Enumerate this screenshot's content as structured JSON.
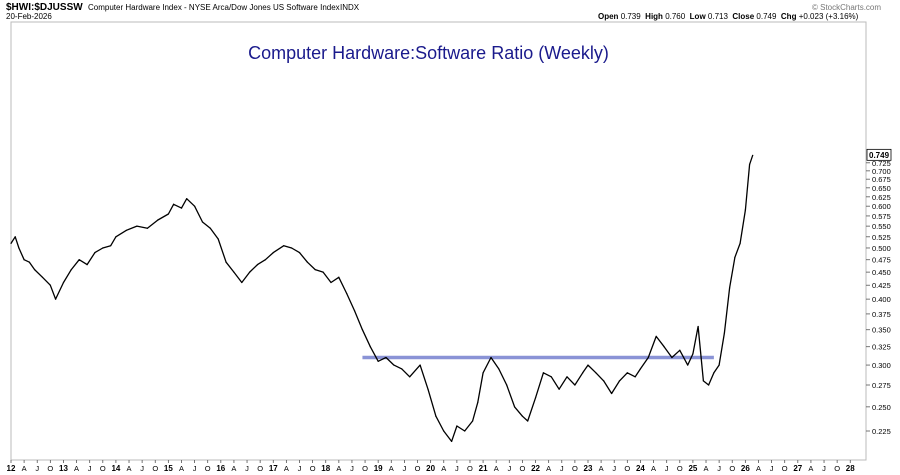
{
  "header": {
    "symbol": "$HWI:$DJUSSW",
    "description": "Computer Hardware Index - NYSE Arca/Dow Jones US Software Index",
    "exchange": "INDX",
    "date": "20-Feb-2026",
    "open_label": "Open",
    "open": "0.739",
    "high_label": "High",
    "high": "0.760",
    "low_label": "Low",
    "low": "0.713",
    "close_label": "Close",
    "close": "0.749",
    "chg_label": "Chg",
    "chg": "+0.023 (+3.16%)",
    "watermark": "© StockCharts.com"
  },
  "colors": {
    "line": "#000000",
    "support": "#8a93d6",
    "title": "#1a1a8c",
    "grid": "#e6e6e6"
  },
  "chart_data": {
    "type": "line",
    "title": "Computer Hardware:Software Ratio (Weekly)",
    "series": [
      {
        "values": [
          [
            2012.0,
            0.51
          ],
          [
            2012.08,
            0.525
          ],
          [
            2012.15,
            0.5
          ],
          [
            2012.25,
            0.475
          ],
          [
            2012.35,
            0.47
          ],
          [
            2012.45,
            0.455
          ],
          [
            2012.6,
            0.44
          ],
          [
            2012.75,
            0.425
          ],
          [
            2012.85,
            0.4
          ],
          [
            2013.0,
            0.43
          ],
          [
            2013.15,
            0.455
          ],
          [
            2013.3,
            0.475
          ],
          [
            2013.45,
            0.465
          ],
          [
            2013.6,
            0.49
          ],
          [
            2013.75,
            0.5
          ],
          [
            2013.9,
            0.505
          ],
          [
            2014.0,
            0.525
          ],
          [
            2014.2,
            0.54
          ],
          [
            2014.4,
            0.55
          ],
          [
            2014.6,
            0.545
          ],
          [
            2014.8,
            0.565
          ],
          [
            2015.0,
            0.58
          ],
          [
            2015.1,
            0.605
          ],
          [
            2015.25,
            0.595
          ],
          [
            2015.35,
            0.62
          ],
          [
            2015.5,
            0.6
          ],
          [
            2015.65,
            0.56
          ],
          [
            2015.8,
            0.545
          ],
          [
            2015.95,
            0.52
          ],
          [
            2016.1,
            0.47
          ],
          [
            2016.25,
            0.45
          ],
          [
            2016.4,
            0.43
          ],
          [
            2016.55,
            0.45
          ],
          [
            2016.7,
            0.465
          ],
          [
            2016.85,
            0.475
          ],
          [
            2017.0,
            0.49
          ],
          [
            2017.2,
            0.505
          ],
          [
            2017.35,
            0.5
          ],
          [
            2017.5,
            0.49
          ],
          [
            2017.65,
            0.47
          ],
          [
            2017.8,
            0.455
          ],
          [
            2017.95,
            0.45
          ],
          [
            2018.1,
            0.43
          ],
          [
            2018.25,
            0.44
          ],
          [
            2018.4,
            0.41
          ],
          [
            2018.55,
            0.38
          ],
          [
            2018.7,
            0.35
          ],
          [
            2018.85,
            0.325
          ],
          [
            2019.0,
            0.305
          ],
          [
            2019.15,
            0.31
          ],
          [
            2019.3,
            0.3
          ],
          [
            2019.45,
            0.295
          ],
          [
            2019.6,
            0.285
          ],
          [
            2019.8,
            0.3
          ],
          [
            2019.95,
            0.27
          ],
          [
            2020.1,
            0.24
          ],
          [
            2020.25,
            0.225
          ],
          [
            2020.4,
            0.215
          ],
          [
            2020.5,
            0.23
          ],
          [
            2020.65,
            0.225
          ],
          [
            2020.8,
            0.235
          ],
          [
            2020.9,
            0.255
          ],
          [
            2021.0,
            0.29
          ],
          [
            2021.15,
            0.31
          ],
          [
            2021.3,
            0.295
          ],
          [
            2021.45,
            0.275
          ],
          [
            2021.6,
            0.25
          ],
          [
            2021.75,
            0.24
          ],
          [
            2021.85,
            0.235
          ],
          [
            2022.0,
            0.26
          ],
          [
            2022.15,
            0.29
          ],
          [
            2022.3,
            0.285
          ],
          [
            2022.45,
            0.27
          ],
          [
            2022.6,
            0.285
          ],
          [
            2022.75,
            0.275
          ],
          [
            2022.9,
            0.29
          ],
          [
            2023.0,
            0.3
          ],
          [
            2023.15,
            0.29
          ],
          [
            2023.3,
            0.28
          ],
          [
            2023.45,
            0.265
          ],
          [
            2023.6,
            0.28
          ],
          [
            2023.75,
            0.29
          ],
          [
            2023.9,
            0.285
          ],
          [
            2024.0,
            0.295
          ],
          [
            2024.15,
            0.31
          ],
          [
            2024.3,
            0.34
          ],
          [
            2024.45,
            0.325
          ],
          [
            2024.6,
            0.31
          ],
          [
            2024.75,
            0.32
          ],
          [
            2024.9,
            0.3
          ],
          [
            2025.0,
            0.315
          ],
          [
            2025.1,
            0.355
          ],
          [
            2025.2,
            0.28
          ],
          [
            2025.3,
            0.275
          ],
          [
            2025.4,
            0.29
          ],
          [
            2025.5,
            0.3
          ],
          [
            2025.6,
            0.345
          ],
          [
            2025.7,
            0.42
          ],
          [
            2025.8,
            0.48
          ],
          [
            2025.9,
            0.51
          ],
          [
            2026.0,
            0.59
          ],
          [
            2026.08,
            0.72
          ],
          [
            2026.14,
            0.749
          ]
        ]
      }
    ],
    "support_line": {
      "x_start": 2018.7,
      "x_end": 2025.4,
      "y": 0.31
    },
    "last_value_label": "0.749",
    "y_axis": {
      "scale": "log",
      "ylim": [
        0.2,
        0.76
      ],
      "ticks": [
        0.225,
        0.25,
        0.275,
        0.3,
        0.325,
        0.35,
        0.375,
        0.4,
        0.425,
        0.45,
        0.475,
        0.5,
        0.525,
        0.55,
        0.575,
        0.6,
        0.625,
        0.65,
        0.675,
        0.7,
        0.725
      ],
      "tick_labels": [
        "0.225",
        "0.250",
        "0.275",
        "0.300",
        "0.325",
        "0.350",
        "0.375",
        "0.400",
        "0.425",
        "0.450",
        "0.475",
        "0.500",
        "0.525",
        "0.550",
        "0.575",
        "0.600",
        "0.625",
        "0.650",
        "0.675",
        "0.700",
        "0.725"
      ]
    },
    "x_axis": {
      "xlim": [
        2012.0,
        2028.3
      ],
      "ticks": [
        [
          2012.0,
          "12"
        ],
        [
          2012.25,
          "A"
        ],
        [
          2012.5,
          "J"
        ],
        [
          2012.75,
          "O"
        ],
        [
          2013.0,
          "13"
        ],
        [
          2013.25,
          "A"
        ],
        [
          2013.5,
          "J"
        ],
        [
          2013.75,
          "O"
        ],
        [
          2014.0,
          "14"
        ],
        [
          2014.25,
          "A"
        ],
        [
          2014.5,
          "J"
        ],
        [
          2014.75,
          "O"
        ],
        [
          2015.0,
          "15"
        ],
        [
          2015.25,
          "A"
        ],
        [
          2015.5,
          "J"
        ],
        [
          2015.75,
          "O"
        ],
        [
          2016.0,
          "16"
        ],
        [
          2016.25,
          "A"
        ],
        [
          2016.5,
          "J"
        ],
        [
          2016.75,
          "O"
        ],
        [
          2017.0,
          "17"
        ],
        [
          2017.25,
          "A"
        ],
        [
          2017.5,
          "J"
        ],
        [
          2017.75,
          "O"
        ],
        [
          2018.0,
          "18"
        ],
        [
          2018.25,
          "A"
        ],
        [
          2018.5,
          "J"
        ],
        [
          2018.75,
          "O"
        ],
        [
          2019.0,
          "19"
        ],
        [
          2019.25,
          "A"
        ],
        [
          2019.5,
          "J"
        ],
        [
          2019.75,
          "O"
        ],
        [
          2020.0,
          "20"
        ],
        [
          2020.25,
          "A"
        ],
        [
          2020.5,
          "J"
        ],
        [
          2020.75,
          "O"
        ],
        [
          2021.0,
          "21"
        ],
        [
          2021.25,
          "A"
        ],
        [
          2021.5,
          "J"
        ],
        [
          2021.75,
          "O"
        ],
        [
          2022.0,
          "22"
        ],
        [
          2022.25,
          "A"
        ],
        [
          2022.5,
          "J"
        ],
        [
          2022.75,
          "O"
        ],
        [
          2023.0,
          "23"
        ],
        [
          2023.25,
          "A"
        ],
        [
          2023.5,
          "J"
        ],
        [
          2023.75,
          "O"
        ],
        [
          2024.0,
          "24"
        ],
        [
          2024.25,
          "A"
        ],
        [
          2024.5,
          "J"
        ],
        [
          2024.75,
          "O"
        ],
        [
          2025.0,
          "25"
        ],
        [
          2025.25,
          "A"
        ],
        [
          2025.5,
          "J"
        ],
        [
          2025.75,
          "O"
        ],
        [
          2026.0,
          "26"
        ],
        [
          2026.25,
          "A"
        ],
        [
          2026.5,
          "J"
        ],
        [
          2026.75,
          "O"
        ],
        [
          2027.0,
          "27"
        ],
        [
          2027.25,
          "A"
        ],
        [
          2027.5,
          "J"
        ],
        [
          2027.75,
          "O"
        ],
        [
          2028.0,
          "28"
        ]
      ]
    },
    "grid": false
  }
}
